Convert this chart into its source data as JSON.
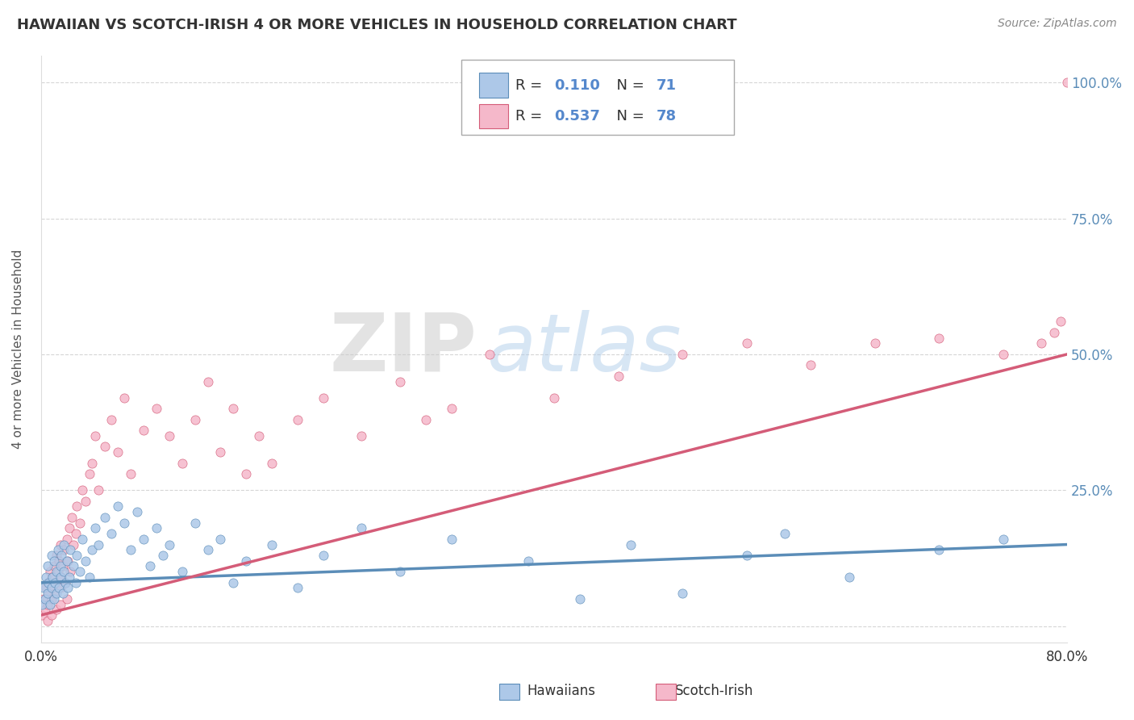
{
  "title": "HAWAIIAN VS SCOTCH-IRISH 4 OR MORE VEHICLES IN HOUSEHOLD CORRELATION CHART",
  "source": "Source: ZipAtlas.com",
  "ylabel_text": "4 or more Vehicles in Household",
  "xmin": 0.0,
  "xmax": 0.8,
  "ymin": -0.03,
  "ymax": 1.05,
  "xticks": [
    0.0,
    0.1,
    0.2,
    0.3,
    0.4,
    0.5,
    0.6,
    0.7,
    0.8
  ],
  "ytick_positions": [
    0.0,
    0.25,
    0.5,
    0.75,
    1.0
  ],
  "ytick_labels": [
    "",
    "25.0%",
    "50.0%",
    "75.0%",
    "100.0%"
  ],
  "hawaiian_color": "#adc8e8",
  "scotch_irish_color": "#f5b8ca",
  "hawaiian_line_color": "#5b8db8",
  "scotch_irish_line_color": "#d45c78",
  "legend_R_hawaiian": "0.110",
  "legend_N_hawaiian": "71",
  "legend_R_scotch": "0.537",
  "legend_N_scotch": "78",
  "hawaiian_scatter_x": [
    0.001,
    0.002,
    0.003,
    0.004,
    0.005,
    0.005,
    0.006,
    0.007,
    0.008,
    0.008,
    0.009,
    0.01,
    0.01,
    0.011,
    0.012,
    0.012,
    0.013,
    0.014,
    0.015,
    0.015,
    0.016,
    0.017,
    0.018,
    0.018,
    0.019,
    0.02,
    0.021,
    0.022,
    0.023,
    0.025,
    0.027,
    0.028,
    0.03,
    0.032,
    0.035,
    0.038,
    0.04,
    0.042,
    0.045,
    0.05,
    0.055,
    0.06,
    0.065,
    0.07,
    0.075,
    0.08,
    0.085,
    0.09,
    0.095,
    0.1,
    0.11,
    0.12,
    0.13,
    0.14,
    0.15,
    0.16,
    0.18,
    0.2,
    0.22,
    0.25,
    0.28,
    0.32,
    0.38,
    0.42,
    0.46,
    0.5,
    0.55,
    0.58,
    0.63,
    0.7,
    0.75
  ],
  "hawaiian_scatter_y": [
    0.04,
    0.07,
    0.05,
    0.09,
    0.06,
    0.11,
    0.08,
    0.04,
    0.13,
    0.07,
    0.09,
    0.05,
    0.12,
    0.08,
    0.1,
    0.06,
    0.14,
    0.07,
    0.11,
    0.09,
    0.13,
    0.06,
    0.1,
    0.15,
    0.08,
    0.12,
    0.07,
    0.09,
    0.14,
    0.11,
    0.08,
    0.13,
    0.1,
    0.16,
    0.12,
    0.09,
    0.14,
    0.18,
    0.15,
    0.2,
    0.17,
    0.22,
    0.19,
    0.14,
    0.21,
    0.16,
    0.11,
    0.18,
    0.13,
    0.15,
    0.1,
    0.19,
    0.14,
    0.16,
    0.08,
    0.12,
    0.15,
    0.07,
    0.13,
    0.18,
    0.1,
    0.16,
    0.12,
    0.05,
    0.15,
    0.06,
    0.13,
    0.17,
    0.09,
    0.14,
    0.16
  ],
  "scotch_scatter_x": [
    0.001,
    0.002,
    0.003,
    0.004,
    0.005,
    0.005,
    0.006,
    0.007,
    0.008,
    0.008,
    0.009,
    0.01,
    0.011,
    0.012,
    0.012,
    0.013,
    0.014,
    0.015,
    0.015,
    0.016,
    0.017,
    0.018,
    0.019,
    0.02,
    0.021,
    0.022,
    0.023,
    0.024,
    0.025,
    0.027,
    0.028,
    0.03,
    0.032,
    0.035,
    0.038,
    0.04,
    0.042,
    0.045,
    0.05,
    0.055,
    0.06,
    0.065,
    0.07,
    0.08,
    0.09,
    0.1,
    0.11,
    0.12,
    0.13,
    0.14,
    0.15,
    0.16,
    0.17,
    0.18,
    0.2,
    0.22,
    0.25,
    0.28,
    0.3,
    0.32,
    0.35,
    0.4,
    0.45,
    0.5,
    0.55,
    0.6,
    0.65,
    0.7,
    0.75,
    0.78,
    0.79,
    0.795,
    0.8,
    0.005,
    0.008,
    0.012,
    0.015,
    0.02
  ],
  "scotch_scatter_y": [
    0.02,
    0.05,
    0.03,
    0.07,
    0.04,
    0.08,
    0.06,
    0.1,
    0.05,
    0.09,
    0.07,
    0.11,
    0.06,
    0.13,
    0.08,
    0.1,
    0.12,
    0.07,
    0.15,
    0.09,
    0.11,
    0.14,
    0.08,
    0.16,
    0.12,
    0.18,
    0.1,
    0.2,
    0.15,
    0.17,
    0.22,
    0.19,
    0.25,
    0.23,
    0.28,
    0.3,
    0.35,
    0.25,
    0.33,
    0.38,
    0.32,
    0.42,
    0.28,
    0.36,
    0.4,
    0.35,
    0.3,
    0.38,
    0.45,
    0.32,
    0.4,
    0.28,
    0.35,
    0.3,
    0.38,
    0.42,
    0.35,
    0.45,
    0.38,
    0.4,
    0.5,
    0.42,
    0.46,
    0.5,
    0.52,
    0.48,
    0.52,
    0.53,
    0.5,
    0.52,
    0.54,
    0.56,
    1.0,
    0.01,
    0.02,
    0.03,
    0.04,
    0.05
  ],
  "watermark_zip": "ZIP",
  "watermark_atlas": "atlas",
  "background_color": "#ffffff",
  "grid_color": "#cccccc",
  "label_color": "#5b8db8",
  "tick_color": "#333333"
}
